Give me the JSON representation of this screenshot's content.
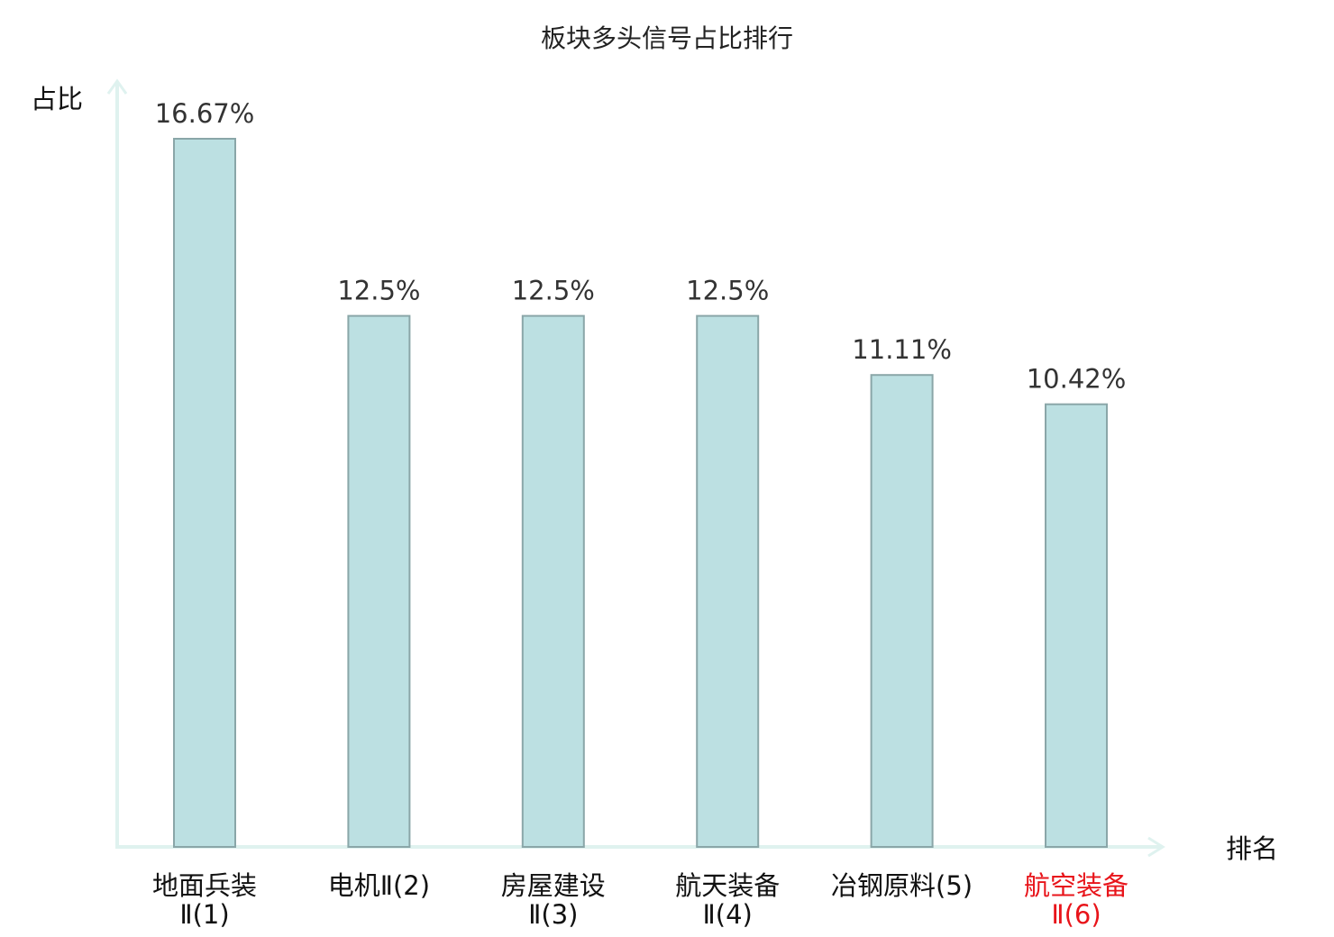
{
  "chart_data": {
    "type": "bar",
    "title": "板块多头信号占比排行",
    "ylabel": "占比",
    "xlabel": "排名",
    "categories": [
      {
        "line1": "地面兵装",
        "line2": "Ⅱ(1)",
        "highlight": false
      },
      {
        "line1": "电机Ⅱ(2)",
        "line2": "",
        "highlight": false
      },
      {
        "line1": "房屋建设",
        "line2": "Ⅱ(3)",
        "highlight": false
      },
      {
        "line1": "航天装备",
        "line2": "Ⅱ(4)",
        "highlight": false
      },
      {
        "line1": "冶钢原料(5)",
        "line2": "",
        "highlight": false
      },
      {
        "line1": "航空装备",
        "line2": "Ⅱ(6)",
        "highlight": true
      }
    ],
    "values": [
      16.67,
      12.5,
      12.5,
      12.5,
      11.11,
      10.42
    ],
    "value_labels": [
      "16.67%",
      "12.5%",
      "12.5%",
      "12.5%",
      "11.11%",
      "10.42%"
    ],
    "ylim": [
      0,
      16.67
    ],
    "grid": false,
    "colors": {
      "bar_fill": "#bce0e2",
      "bar_stroke": "#8aa6a8",
      "axis": "#dff2ef",
      "label": "#111111",
      "highlight_label": "#e8141a"
    }
  }
}
